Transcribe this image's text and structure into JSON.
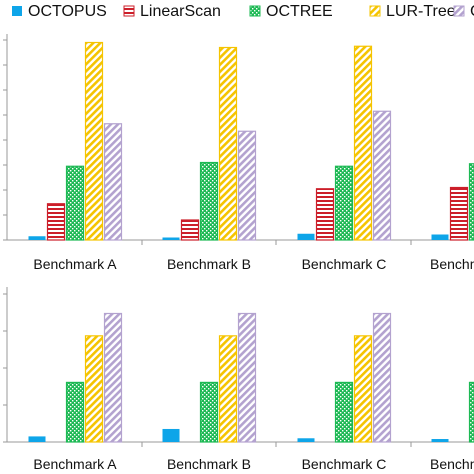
{
  "colors": {
    "OCTOPUS": "#0ea5e9",
    "LinearScan": "#cc1f2a",
    "OCTREE": "#1db954",
    "LUR-Tree": "#f5c400",
    "C": "#b3a2cf",
    "axis": "#9a9a9a",
    "text": "#111111"
  },
  "legend": [
    {
      "label": "OCTOPUS",
      "pattern": "solid",
      "color_key": "OCTOPUS"
    },
    {
      "label": "LinearScan",
      "pattern": "hlines",
      "color_key": "LinearScan"
    },
    {
      "label": "OCTREE",
      "pattern": "checker",
      "color_key": "OCTREE"
    },
    {
      "label": "LUR-Tree",
      "pattern": "diag",
      "color_key": "LUR-Tree"
    },
    {
      "label": "C",
      "pattern": "diag",
      "color_key": "C"
    }
  ],
  "chart_data": [
    {
      "type": "bar",
      "title": "",
      "xlabel": "",
      "ylabel": "",
      "ylim": [
        0,
        8
      ],
      "grid": false,
      "categories": [
        "Benchmark A",
        "Benchmark B",
        "Benchmark C",
        "Benchmark D"
      ],
      "category_labels_visible": [
        "Benchmark A",
        "Benchmark B",
        "Benchmark C",
        "Benchm"
      ],
      "series": [
        {
          "name": "OCTOPUS",
          "values": [
            0.15,
            0.1,
            0.25,
            0.22
          ]
        },
        {
          "name": "LinearScan",
          "values": [
            1.45,
            0.8,
            2.05,
            2.1
          ]
        },
        {
          "name": "OCTREE",
          "values": [
            2.95,
            3.1,
            2.95,
            3.05
          ]
        },
        {
          "name": "LUR-Tree",
          "values": [
            7.9,
            7.7,
            7.75,
            null
          ]
        },
        {
          "name": "C",
          "values": [
            4.65,
            4.35,
            5.15,
            null
          ]
        }
      ]
    },
    {
      "type": "bar",
      "title": "",
      "xlabel": "",
      "ylabel": "",
      "ylim": [
        0,
        4
      ],
      "grid": false,
      "categories": [
        "Benchmark A",
        "Benchmark B",
        "Benchmark C",
        "Benchmark D"
      ],
      "category_labels_visible": [
        "Benchmark A",
        "Benchmark B",
        "Benchmark C",
        "Benchm"
      ],
      "series": [
        {
          "name": "OCTOPUS",
          "values": [
            0.15,
            0.35,
            0.1,
            0.08
          ]
        },
        {
          "name": "LinearScan",
          "values": [
            0,
            0,
            0,
            0
          ]
        },
        {
          "name": "OCTREE",
          "values": [
            1.6,
            1.6,
            1.6,
            1.6
          ]
        },
        {
          "name": "LUR-Tree",
          "values": [
            2.85,
            2.85,
            2.85,
            null
          ]
        },
        {
          "name": "C",
          "values": [
            3.45,
            3.45,
            3.45,
            null
          ]
        }
      ]
    }
  ]
}
